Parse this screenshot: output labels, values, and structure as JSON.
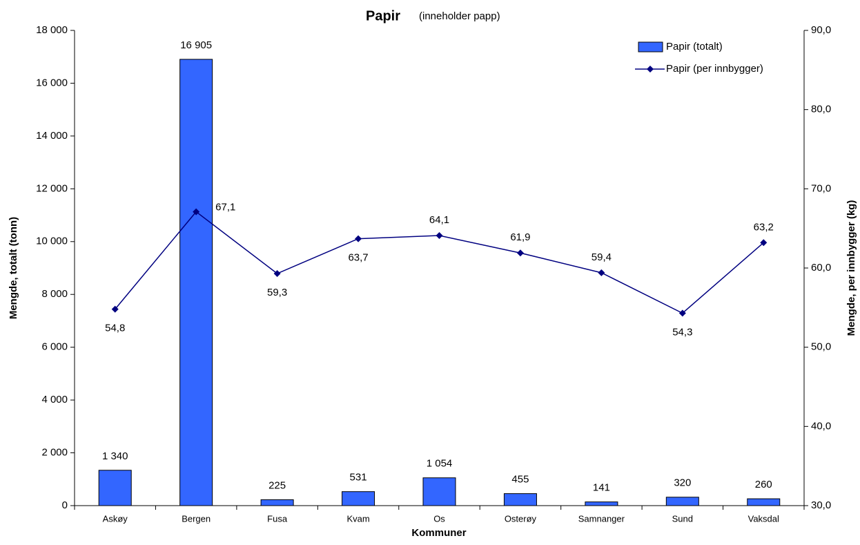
{
  "chart_data": {
    "type": "combo",
    "title": "Papir",
    "subtitle": "(inneholder papp)",
    "x_label": "Kommuner",
    "y_label": "Mengde, totalt  (tonn)",
    "y2_label": "Mengde, per innbygger   (kg)",
    "categories": [
      "Askøy",
      "Bergen",
      "Fusa",
      "Kvam",
      "Os",
      "Osterøy",
      "Samnanger",
      "Sund",
      "Vaksdal"
    ],
    "series": [
      {
        "name": "Papir  (totalt)",
        "type": "bar",
        "color": "#3366ff",
        "values": [
          1340,
          16905,
          225,
          531,
          1054,
          455,
          141,
          320,
          260
        ],
        "value_labels": [
          "1 340",
          "16 905",
          "225",
          "531",
          "1 054",
          "455",
          "141",
          "320",
          "260"
        ]
      },
      {
        "name": "Papir  (per innbygger)",
        "type": "line",
        "axis": "y2",
        "color": "#000080",
        "values": [
          54.8,
          67.1,
          59.3,
          63.7,
          64.1,
          61.9,
          59.4,
          54.3,
          63.2
        ],
        "value_labels": [
          "54,8",
          "67,1",
          "59,3",
          "63,7",
          "64,1",
          "61,9",
          "59,4",
          "54,3",
          "63,2"
        ]
      }
    ],
    "ylim": [
      0,
      18000
    ],
    "yticks": [
      0,
      {
        "value": 2000,
        "label": "2 000"
      },
      {
        "value": 4000,
        "label": "4 000"
      },
      {
        "value": 6000,
        "label": "6 000"
      },
      {
        "value": 8000,
        "label": "8 000"
      },
      {
        "value": 10000,
        "label": "10 000"
      },
      {
        "value": 12000,
        "label": "12 000"
      },
      {
        "value": 14000,
        "label": "14 000"
      },
      {
        "value": 16000,
        "label": "16 000"
      },
      {
        "value": 18000,
        "label": "18 000"
      }
    ],
    "y2lim": [
      30,
      90
    ],
    "y2ticks": [
      {
        "value": 30,
        "label": "30,0"
      },
      {
        "value": 40,
        "label": "40,0"
      },
      {
        "value": 50,
        "label": "50,0"
      },
      {
        "value": 60,
        "label": "60,0"
      },
      {
        "value": 70,
        "label": "70,0"
      },
      {
        "value": 80,
        "label": "80,0"
      },
      {
        "value": 90,
        "label": "90,0"
      }
    ],
    "grid": false,
    "legend": "top-right"
  }
}
